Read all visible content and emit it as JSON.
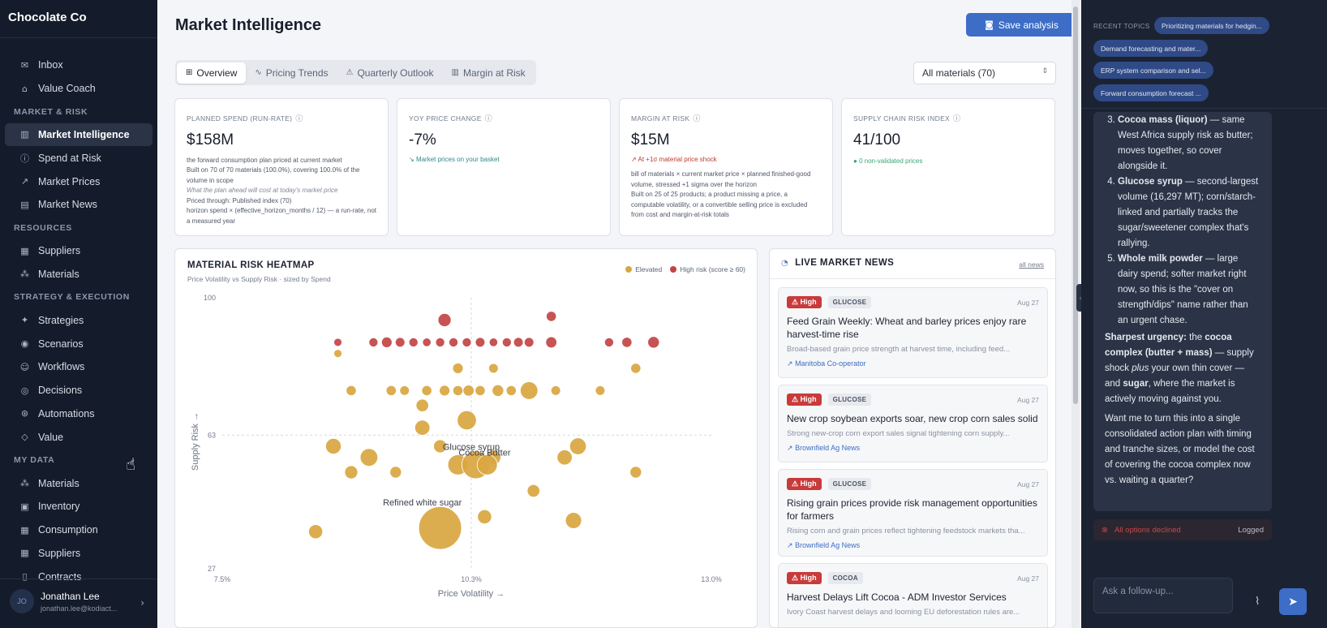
{
  "app": {
    "brand": "Chocolate Co"
  },
  "sidebar": {
    "items_top": [
      {
        "label": "Inbox",
        "icon": "inbox-icon"
      },
      {
        "label": "Value Coach",
        "icon": "graduation-cap-icon"
      }
    ],
    "sections": [
      {
        "title": "MARKET & RISK",
        "items": [
          {
            "label": "Market Intelligence",
            "icon": "bar-chart-icon",
            "active": true
          },
          {
            "label": "Spend at Risk",
            "icon": "alert-circle-icon"
          },
          {
            "label": "Market Prices",
            "icon": "line-chart-icon"
          },
          {
            "label": "Market News",
            "icon": "newspaper-icon"
          }
        ]
      },
      {
        "title": "RESOURCES",
        "items": [
          {
            "label": "Suppliers",
            "icon": "building-icon"
          },
          {
            "label": "Materials",
            "icon": "boxes-icon"
          }
        ]
      },
      {
        "title": "STRATEGY & EXECUTION",
        "items": [
          {
            "label": "Strategies",
            "icon": "sparkles-icon"
          },
          {
            "label": "Scenarios",
            "icon": "eye-icon"
          },
          {
            "label": "Workflows",
            "icon": "users-icon"
          },
          {
            "label": "Decisions",
            "icon": "target-icon"
          },
          {
            "label": "Automations",
            "icon": "bot-icon"
          },
          {
            "label": "Value",
            "icon": "tag-icon"
          }
        ]
      },
      {
        "title": "MY DATA",
        "items": [
          {
            "label": "Materials",
            "icon": "boxes-icon"
          },
          {
            "label": "Inventory",
            "icon": "warehouse-icon"
          },
          {
            "label": "Consumption",
            "icon": "calendar-icon"
          },
          {
            "label": "Suppliers",
            "icon": "building-icon"
          },
          {
            "label": "Contracts",
            "icon": "file-icon"
          }
        ]
      }
    ],
    "user": {
      "initials": "JO",
      "name": "Jonathan Lee",
      "email": "jonathan.lee@kodiact..."
    }
  },
  "main": {
    "title": "Market Intelligence",
    "save_label": "Save analysis",
    "tabs": [
      {
        "label": "Overview",
        "icon": "grid-icon",
        "active": true
      },
      {
        "label": "Pricing Trends",
        "icon": "trend-icon"
      },
      {
        "label": "Quarterly Outlook",
        "icon": "warning-icon"
      },
      {
        "label": "Margin at Risk",
        "icon": "bar-chart-icon"
      }
    ],
    "filter": "All materials (70)",
    "kpis": [
      {
        "label": "PLANNED SPEND (RUN-RATE)",
        "value": "$158M",
        "desc": "the forward consumption plan priced at current market",
        "lines": [
          "Built on 70 of 70 materials (100.0%), covering 100.0% of the volume in scope",
          "What the plan ahead will cost at today's market price",
          "Priced through: Published index (70)",
          "horizon spend × (effective_horizon_months / 12) — a run-rate, not a measured year"
        ]
      },
      {
        "label": "YOY PRICE CHANGE",
        "value": "-7%",
        "trend": "Market prices on your basket"
      },
      {
        "label": "MARGIN AT RISK",
        "value": "$15M",
        "trend": "At +1σ material price shock",
        "lines": [
          "bill of materials × current market price × planned finished-good volume, stressed +1 sigma over the horizon",
          "Built on 25 of 25 products; a product missing a price, a computable volatility, or a convertible selling price is excluded from cost and margin-at-risk totals"
        ]
      },
      {
        "label": "SUPPLY CHAIN RISK INDEX",
        "value": "41/100",
        "dot": "0 non-validated prices"
      }
    ],
    "heatmap": {
      "title": "MATERIAL RISK HEATMAP",
      "subtitle": "Price Volatility vs Supply Risk · sized by Spend",
      "legend": [
        "Elevated",
        "High risk (score ≥ 60)"
      ]
    },
    "news": {
      "title": "LIVE MARKET NEWS",
      "all_link": "all news",
      "items": [
        {
          "severity": "High",
          "category": "GLUCOSE",
          "date": "Aug 27",
          "title": "Feed Grain Weekly: Wheat and barley prices enjoy rare harvest-time rise",
          "snippet": "Broad-based grain price strength at harvest time, including feed...",
          "source": "Manitoba Co-operator"
        },
        {
          "severity": "High",
          "category": "GLUCOSE",
          "date": "Aug 27",
          "title": "New crop soybean exports soar, new crop corn sales solid",
          "snippet": "Strong new-crop corn export sales signal tightening corn supply...",
          "source": "Brownfield Ag News"
        },
        {
          "severity": "High",
          "category": "GLUCOSE",
          "date": "Aug 27",
          "title": "Rising grain prices provide risk management opportunities for farmers",
          "snippet": "Rising corn and grain prices reflect tightening feedstock markets tha...",
          "source": "Brownfield Ag News"
        },
        {
          "severity": "High",
          "category": "COCOA",
          "date": "Aug 27",
          "title": "Harvest Delays Lift Cocoa - ADM Investor Services",
          "snippet": "Ivory Coast harvest delays and looming EU deforestation rules are...",
          "source": ""
        }
      ]
    }
  },
  "chat": {
    "recent_label": "RECENT TOPICS",
    "topics": [
      "Prioritizing materials for hedgin...",
      "Demand forecasting and mater...",
      "ERP system comparison and sel...",
      "Forward consumption forecast ..."
    ],
    "declined": "All options declined",
    "logged": "Logged",
    "input_placeholder": "Ask a follow-up..."
  },
  "chart_data": {
    "type": "scatter",
    "title": "MATERIAL RISK HEATMAP",
    "subtitle": "Price Volatility vs Supply Risk · sized by Spend",
    "xlabel": "Price Volatility →",
    "ylabel": "Supply Risk →",
    "x_ticks": [
      "7.5%",
      "10.3%",
      "13.0%"
    ],
    "y_ticks": [
      "100",
      "63",
      "27"
    ],
    "xlim": [
      7.5,
      13.0
    ],
    "ylim": [
      27,
      100
    ],
    "reference_lines": {
      "x": 10.3,
      "y": 63
    },
    "legend": [
      "Elevated",
      "High risk (score ≥ 60)"
    ],
    "colors": {
      "Elevated": "#d9a640",
      "High risk (score ≥ 60)": "#c24444"
    },
    "series": [
      {
        "name": "High risk (score ≥ 60)",
        "points": [
          [
            10.0,
            94,
            2.6
          ],
          [
            11.2,
            95,
            2.0
          ],
          [
            8.8,
            88,
            1.6
          ],
          [
            9.2,
            88,
            1.8
          ],
          [
            9.35,
            88,
            2.1
          ],
          [
            9.5,
            88,
            1.9
          ],
          [
            9.65,
            88,
            1.8
          ],
          [
            9.8,
            88,
            1.7
          ],
          [
            9.95,
            88,
            1.8
          ],
          [
            10.1,
            88,
            1.8
          ],
          [
            10.25,
            88,
            1.8
          ],
          [
            10.4,
            88,
            1.9
          ],
          [
            10.55,
            88,
            1.7
          ],
          [
            10.7,
            88,
            1.8
          ],
          [
            10.83,
            88,
            1.9
          ],
          [
            10.95,
            88,
            1.9
          ],
          [
            11.2,
            88,
            2.2
          ],
          [
            11.85,
            88,
            1.8
          ],
          [
            12.05,
            88,
            2.0
          ],
          [
            12.35,
            88,
            2.3
          ]
        ]
      },
      {
        "name": "Elevated",
        "points": [
          [
            8.8,
            85,
            1.6
          ],
          [
            10.15,
            81,
            2.1
          ],
          [
            10.55,
            81,
            1.9
          ],
          [
            12.15,
            81,
            2.0
          ],
          [
            8.95,
            75,
            2.0
          ],
          [
            9.4,
            75,
            2.0
          ],
          [
            9.55,
            75,
            1.9
          ],
          [
            9.8,
            75,
            2.0
          ],
          [
            10.0,
            75,
            2.1
          ],
          [
            10.15,
            75,
            2.0
          ],
          [
            10.27,
            75,
            2.2
          ],
          [
            10.4,
            75,
            2.0
          ],
          [
            10.6,
            75,
            2.3
          ],
          [
            10.75,
            75,
            2.0
          ],
          [
            10.95,
            75,
            3.5
          ],
          [
            11.25,
            75,
            1.9
          ],
          [
            11.75,
            75,
            1.9
          ],
          [
            9.75,
            71,
            2.5
          ],
          [
            10.25,
            67,
            3.8
          ],
          [
            9.75,
            65,
            3.0
          ],
          [
            8.75,
            60,
            3.1
          ],
          [
            9.15,
            57,
            3.5
          ],
          [
            9.95,
            60,
            2.6
          ],
          [
            10.55,
            57,
            2.9
          ],
          [
            11.35,
            57,
            3.0
          ],
          [
            11.5,
            60,
            3.3
          ],
          [
            10.15,
            55,
            4.0
          ],
          [
            10.35,
            55,
            5.5
          ],
          [
            10.48,
            55,
            4.0
          ],
          [
            8.95,
            53,
            2.6
          ],
          [
            9.45,
            53,
            2.3
          ],
          [
            12.15,
            53,
            2.3
          ],
          [
            11.0,
            48,
            2.5
          ],
          [
            10.45,
            41,
            2.8
          ],
          [
            11.45,
            40,
            3.2
          ],
          [
            8.55,
            37,
            2.8
          ],
          [
            9.95,
            38,
            8.5
          ]
        ]
      }
    ],
    "annotations": [
      {
        "text": "Glucose syrup",
        "x": 10.3,
        "y": 59
      },
      {
        "text": "Cocoa Butter",
        "x": 10.45,
        "y": 57.5
      },
      {
        "text": "Refined white sugar",
        "x": 9.75,
        "y": 44
      }
    ]
  }
}
